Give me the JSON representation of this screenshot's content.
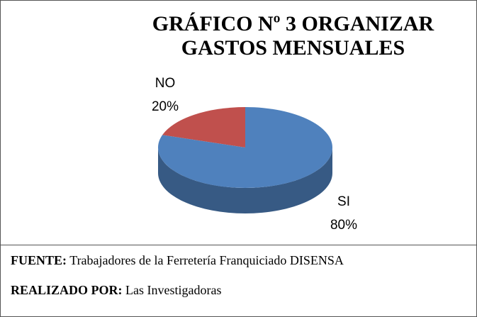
{
  "chart_data": {
    "type": "pie3d",
    "title": "GRÁFICO Nº 3 ORGANIZAR GASTOS MENSUALES",
    "categories": [
      "NO",
      "SI"
    ],
    "values": [
      20,
      80
    ],
    "value_labels": [
      "20%",
      "80%"
    ],
    "colors": [
      "#c0504d",
      "#4f81bd"
    ]
  },
  "footer": {
    "source_label": "FUENTE:",
    "source_text": "Trabajadores de la Ferretería Franquiciado DISENSA",
    "author_label": "REALIZADO POR:",
    "author_text": "Las Investigadoras"
  }
}
